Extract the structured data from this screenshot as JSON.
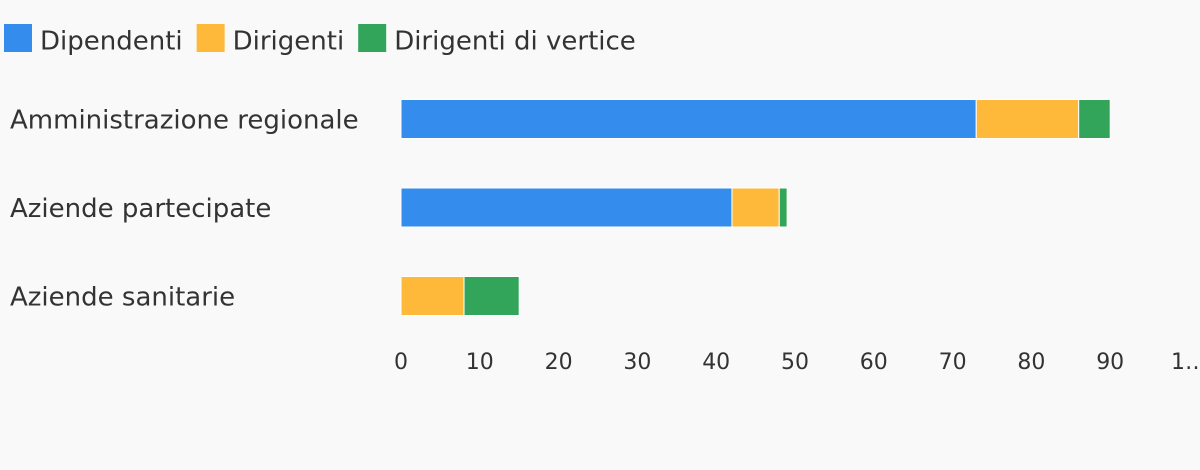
{
  "chart_data": {
    "type": "stacked-bar-horizontal",
    "categories": [
      "Amministrazione regionale",
      "Aziende partecipate",
      "Aziende sanitarie"
    ],
    "series": [
      {
        "name": "Dipendenti",
        "color": "#348ced",
        "values": [
          73,
          42,
          0
        ]
      },
      {
        "name": "Dirigenti",
        "color": "#ffb93a",
        "values": [
          13,
          6,
          8
        ]
      },
      {
        "name": "Dirigenti di vertice",
        "color": "#32a55a",
        "values": [
          4,
          1,
          7
        ]
      }
    ],
    "xlim": [
      0,
      100
    ],
    "xticks": [
      0,
      10,
      20,
      30,
      40,
      50,
      60,
      70,
      80,
      90,
      {
        "value": 100,
        "label": "1…"
      }
    ],
    "legend": "top-left"
  }
}
